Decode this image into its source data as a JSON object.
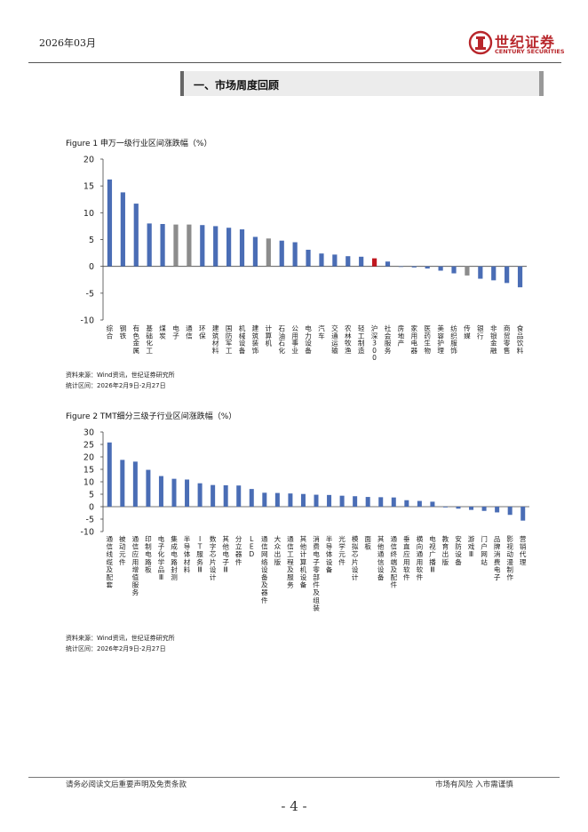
{
  "header": {
    "date": "2026年03月",
    "logo_cn": "世纪证券",
    "logo_en": "CENTURY SECURITIES"
  },
  "section": {
    "title": "一、市场周度回顾"
  },
  "colors": {
    "blue": "#4a6db5",
    "gray": "#8c8c8c",
    "red": "#c0171f",
    "brand": "#b8262b"
  },
  "figure1": {
    "title": "Figure 1  申万一级行业区间涨跌幅（%）",
    "source": "资料来源：Wind资讯，世纪证券研究所",
    "period": "统计区间：2026年2月9日-2月27日"
  },
  "figure2": {
    "title": "Figure 2 TMT细分三级子行业区间涨跌幅（%）",
    "source": "资料来源：Wind资讯，世纪证券研究所",
    "period": "统计区间：2026年2月9日-2月27日"
  },
  "footer": {
    "disclaimer": "请务必阅读文后重要声明及免责条款",
    "risk": "市场有风险  入市需谨慎",
    "page": "- 4 -"
  },
  "chart_data": [
    {
      "type": "bar",
      "title": "申万一级行业区间涨跌幅（%）",
      "ylim": [
        -10,
        20
      ],
      "yticks": [
        -10,
        -5,
        0,
        5,
        10,
        15,
        20
      ],
      "categories": [
        "综合",
        "钢铁",
        "有色金属",
        "基础化工",
        "煤炭",
        "电子",
        "通信",
        "环保",
        "建筑材料",
        "国防军工",
        "机械设备",
        "建筑装饰",
        "计算机",
        "石油石化",
        "公用事业",
        "电力设备",
        "汽车",
        "交通运输",
        "农林牧渔",
        "轻工制造",
        "沪深300",
        "社会服务",
        "房地产",
        "家用电器",
        "医药生物",
        "美容护理",
        "纺织服饰",
        "传媒",
        "银行",
        "非银金融",
        "商贸零售",
        "食品饮料"
      ],
      "values": [
        16.2,
        13.8,
        11.7,
        8.0,
        7.9,
        7.8,
        7.8,
        7.7,
        7.5,
        7.2,
        6.9,
        5.5,
        5.2,
        4.8,
        4.5,
        3.1,
        2.4,
        2.2,
        1.9,
        1.8,
        1.5,
        0.9,
        -0.1,
        -0.2,
        -0.4,
        -0.8,
        -1.3,
        -1.7,
        -2.3,
        -2.6,
        -3.1,
        -3.9
      ],
      "highlight": {
        "电子": "gray",
        "通信": "gray",
        "计算机": "gray",
        "传媒": "gray",
        "沪深300": "red"
      }
    },
    {
      "type": "bar",
      "title": "TMT细分三级子行业区间涨跌幅（%）",
      "ylim": [
        -10,
        30
      ],
      "yticks": [
        -10,
        -5,
        0,
        5,
        10,
        15,
        20,
        25,
        30
      ],
      "categories": [
        "通信线缆及配套",
        "被动元件",
        "通信应用增值服务",
        "印制电路板",
        "电子化学品Ⅲ",
        "集成电路封测",
        "半导体材料",
        "IT服务Ⅲ",
        "数字芯片设计",
        "其他电子Ⅲ",
        "分立器件",
        "LED",
        "通信网络设备及器件",
        "大众出版",
        "通信工程及服务",
        "其他计算机设备",
        "消费电子零部件及组装",
        "半导体设备",
        "光学元件",
        "模拟芯片设计",
        "面板",
        "其他通信设备",
        "通信终端及配件",
        "垂直应用软件",
        "横向通用软件",
        "电视广播Ⅲ",
        "教育出版",
        "安防设备",
        "游戏Ⅲ",
        "门户网站",
        "品牌消费电子",
        "影视动漫制作",
        "营销代理"
      ],
      "values": [
        25.8,
        18.8,
        18.1,
        14.8,
        12.3,
        11.2,
        10.9,
        9.4,
        8.7,
        8.6,
        8.5,
        7.1,
        5.6,
        5.5,
        5.3,
        5.1,
        4.8,
        4.7,
        4.4,
        4.2,
        3.9,
        3.8,
        3.7,
        2.6,
        2.3,
        2.0,
        -0.3,
        -0.8,
        -1.3,
        -1.7,
        -2.3,
        -3.3,
        -5.6
      ]
    }
  ]
}
